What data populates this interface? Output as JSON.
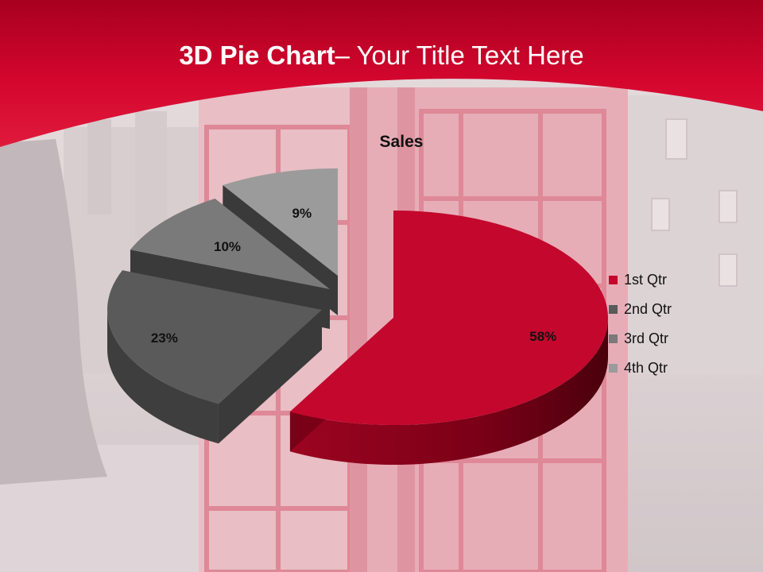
{
  "slide": {
    "title_bold": "3D Pie Chart",
    "title_rest": "– Your Title Text Here",
    "colors": {
      "banner": "#d4062e",
      "banner_dark": "#a8001f",
      "background": "#d9cfd1"
    }
  },
  "chart_data": {
    "type": "pie",
    "style": "3d-exploded",
    "title": "Sales",
    "categories": [
      "1st Qtr",
      "2nd Qtr",
      "3rd Qtr",
      "4th Qtr"
    ],
    "values": [
      58,
      23,
      10,
      9
    ],
    "labels": [
      "58%",
      "23%",
      "10%",
      "9%"
    ],
    "colors": [
      "#c4072d",
      "#5a5a5a",
      "#7a7a7a",
      "#9b9b9b"
    ],
    "legend_position": "right"
  }
}
